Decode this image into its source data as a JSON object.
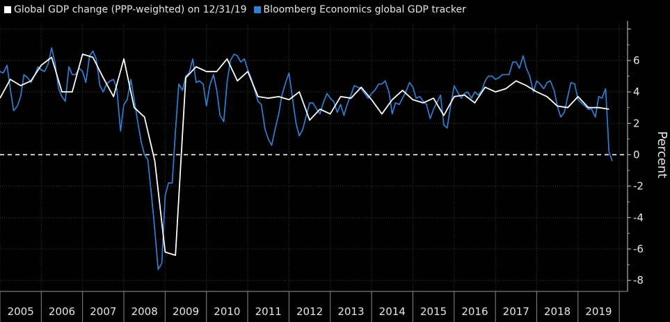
{
  "chart_data": {
    "type": "line",
    "ylabel": "Percent",
    "ylim": [
      -8.7,
      8.3
    ],
    "yticks": [
      8,
      6,
      4,
      2,
      0,
      -2,
      -4,
      -6,
      -8
    ],
    "ytick_labels": [
      "",
      "6",
      "4",
      "2",
      "0",
      "-2",
      "-4",
      "-6",
      "-8"
    ],
    "xlim": [
      2005.0,
      2020.2
    ],
    "year_labels": [
      "2005",
      "2006",
      "2007",
      "2008",
      "2009",
      "2010",
      "2011",
      "2012",
      "2013",
      "2014",
      "2015",
      "2016",
      "2017",
      "2018",
      "2019"
    ],
    "zero_line": "dashed",
    "legend_position": "top-left",
    "series": [
      {
        "name": "Global GDP change (PPP-weighted) on 12/31/19",
        "color": "#ffffff",
        "points": [
          [
            2005.0,
            3.6
          ],
          [
            2005.25,
            4.8
          ],
          [
            2005.5,
            4.4
          ],
          [
            2005.75,
            4.7
          ],
          [
            2006.0,
            5.7
          ],
          [
            2006.25,
            6.2
          ],
          [
            2006.5,
            4.0
          ],
          [
            2006.75,
            4.0
          ],
          [
            2007.0,
            6.4
          ],
          [
            2007.25,
            6.2
          ],
          [
            2007.5,
            4.9
          ],
          [
            2007.75,
            3.7
          ],
          [
            2008.0,
            6.1
          ],
          [
            2008.25,
            3.0
          ],
          [
            2008.5,
            2.4
          ],
          [
            2008.75,
            -0.4
          ],
          [
            2009.0,
            -6.2
          ],
          [
            2009.25,
            -6.4
          ],
          [
            2009.5,
            4.9
          ],
          [
            2009.75,
            5.6
          ],
          [
            2010.0,
            5.3
          ],
          [
            2010.25,
            5.3
          ],
          [
            2010.5,
            6.1
          ],
          [
            2010.75,
            4.7
          ],
          [
            2011.0,
            5.3
          ],
          [
            2011.25,
            3.7
          ],
          [
            2011.5,
            3.6
          ],
          [
            2011.75,
            3.7
          ],
          [
            2012.0,
            3.5
          ],
          [
            2012.25,
            4.0
          ],
          [
            2012.5,
            2.2
          ],
          [
            2012.75,
            2.9
          ],
          [
            2013.0,
            2.6
          ],
          [
            2013.25,
            3.7
          ],
          [
            2013.5,
            3.6
          ],
          [
            2013.75,
            4.3
          ],
          [
            2014.0,
            3.5
          ],
          [
            2014.25,
            2.6
          ],
          [
            2014.5,
            3.5
          ],
          [
            2014.75,
            4.1
          ],
          [
            2015.0,
            3.5
          ],
          [
            2015.25,
            3.3
          ],
          [
            2015.5,
            3.6
          ],
          [
            2015.75,
            2.5
          ],
          [
            2016.0,
            3.7
          ],
          [
            2016.25,
            3.8
          ],
          [
            2016.5,
            3.3
          ],
          [
            2016.75,
            4.3
          ],
          [
            2017.0,
            4.0
          ],
          [
            2017.25,
            4.2
          ],
          [
            2017.5,
            4.7
          ],
          [
            2017.75,
            4.4
          ],
          [
            2018.0,
            4.0
          ],
          [
            2018.25,
            3.7
          ],
          [
            2018.5,
            3.1
          ],
          [
            2018.75,
            3.0
          ],
          [
            2019.0,
            3.7
          ],
          [
            2019.25,
            3.0
          ],
          [
            2019.5,
            3.0
          ],
          [
            2019.75,
            2.9
          ]
        ]
      },
      {
        "name": "Bloomberg Economics global GDP tracker",
        "color": "#2f7fd6",
        "points": [
          [
            2005.0,
            5.3
          ],
          [
            2005.08,
            5.2
          ],
          [
            2005.17,
            5.7
          ],
          [
            2005.25,
            4.2
          ],
          [
            2005.33,
            2.8
          ],
          [
            2005.42,
            3.1
          ],
          [
            2005.5,
            3.7
          ],
          [
            2005.58,
            5.1
          ],
          [
            2005.67,
            4.9
          ],
          [
            2005.75,
            4.6
          ],
          [
            2005.83,
            5.0
          ],
          [
            2005.92,
            5.6
          ],
          [
            2006.0,
            5.4
          ],
          [
            2006.08,
            5.3
          ],
          [
            2006.17,
            5.8
          ],
          [
            2006.25,
            6.8
          ],
          [
            2006.33,
            5.9
          ],
          [
            2006.42,
            4.2
          ],
          [
            2006.5,
            3.7
          ],
          [
            2006.58,
            3.4
          ],
          [
            2006.67,
            5.6
          ],
          [
            2006.75,
            5.1
          ],
          [
            2006.83,
            5.1
          ],
          [
            2006.92,
            5.5
          ],
          [
            2007.0,
            5.3
          ],
          [
            2007.08,
            4.6
          ],
          [
            2007.17,
            6.3
          ],
          [
            2007.25,
            6.6
          ],
          [
            2007.33,
            6.1
          ],
          [
            2007.42,
            4.4
          ],
          [
            2007.5,
            4.0
          ],
          [
            2007.58,
            4.5
          ],
          [
            2007.67,
            4.7
          ],
          [
            2007.75,
            4.8
          ],
          [
            2007.83,
            4.2
          ],
          [
            2007.92,
            1.5
          ],
          [
            2008.0,
            3.2
          ],
          [
            2008.08,
            3.5
          ],
          [
            2008.17,
            4.8
          ],
          [
            2008.25,
            3.5
          ],
          [
            2008.33,
            2.2
          ],
          [
            2008.42,
            0.8
          ],
          [
            2008.5,
            0.0
          ],
          [
            2008.58,
            -0.3
          ],
          [
            2008.67,
            -2.6
          ],
          [
            2008.75,
            -4.8
          ],
          [
            2008.83,
            -7.3
          ],
          [
            2008.92,
            -6.9
          ],
          [
            2009.0,
            -2.6
          ],
          [
            2009.08,
            -1.8
          ],
          [
            2009.17,
            -1.8
          ],
          [
            2009.25,
            1.5
          ],
          [
            2009.33,
            4.5
          ],
          [
            2009.42,
            4.1
          ],
          [
            2009.5,
            5.0
          ],
          [
            2009.58,
            5.2
          ],
          [
            2009.67,
            6.1
          ],
          [
            2009.75,
            4.6
          ],
          [
            2009.83,
            4.7
          ],
          [
            2009.92,
            4.5
          ],
          [
            2010.0,
            3.1
          ],
          [
            2010.08,
            4.4
          ],
          [
            2010.17,
            5.1
          ],
          [
            2010.25,
            4.1
          ],
          [
            2010.33,
            2.5
          ],
          [
            2010.42,
            2.1
          ],
          [
            2010.5,
            4.6
          ],
          [
            2010.58,
            6.0
          ],
          [
            2010.67,
            6.4
          ],
          [
            2010.75,
            6.3
          ],
          [
            2010.83,
            5.9
          ],
          [
            2010.92,
            6.1
          ],
          [
            2011.0,
            5.4
          ],
          [
            2011.08,
            4.9
          ],
          [
            2011.17,
            4.1
          ],
          [
            2011.25,
            3.4
          ],
          [
            2011.33,
            3.2
          ],
          [
            2011.42,
            1.6
          ],
          [
            2011.5,
            1.0
          ],
          [
            2011.58,
            0.6
          ],
          [
            2011.67,
            1.7
          ],
          [
            2011.75,
            2.6
          ],
          [
            2011.83,
            3.8
          ],
          [
            2011.92,
            4.6
          ],
          [
            2012.0,
            5.2
          ],
          [
            2012.08,
            3.7
          ],
          [
            2012.17,
            2.0
          ],
          [
            2012.25,
            1.2
          ],
          [
            2012.33,
            1.6
          ],
          [
            2012.42,
            2.5
          ],
          [
            2012.5,
            3.3
          ],
          [
            2012.58,
            3.3
          ],
          [
            2012.67,
            2.9
          ],
          [
            2012.75,
            2.6
          ],
          [
            2012.83,
            3.3
          ],
          [
            2012.92,
            3.9
          ],
          [
            2013.0,
            3.6
          ],
          [
            2013.08,
            3.4
          ],
          [
            2013.17,
            2.7
          ],
          [
            2013.25,
            3.2
          ],
          [
            2013.33,
            2.5
          ],
          [
            2013.42,
            3.3
          ],
          [
            2013.5,
            3.8
          ],
          [
            2013.58,
            4.4
          ],
          [
            2013.67,
            4.3
          ],
          [
            2013.75,
            4.2
          ],
          [
            2013.83,
            3.9
          ],
          [
            2013.92,
            3.6
          ],
          [
            2014.0,
            3.9
          ],
          [
            2014.08,
            4.1
          ],
          [
            2014.17,
            4.5
          ],
          [
            2014.25,
            4.5
          ],
          [
            2014.33,
            4.7
          ],
          [
            2014.42,
            4.0
          ],
          [
            2014.5,
            2.6
          ],
          [
            2014.58,
            3.3
          ],
          [
            2014.67,
            3.2
          ],
          [
            2014.75,
            3.6
          ],
          [
            2014.83,
            4.0
          ],
          [
            2014.92,
            4.6
          ],
          [
            2015.0,
            4.3
          ],
          [
            2015.08,
            3.6
          ],
          [
            2015.17,
            3.7
          ],
          [
            2015.25,
            3.4
          ],
          [
            2015.33,
            3.2
          ],
          [
            2015.42,
            2.3
          ],
          [
            2015.5,
            2.9
          ],
          [
            2015.58,
            3.3
          ],
          [
            2015.67,
            3.8
          ],
          [
            2015.75,
            1.9
          ],
          [
            2015.83,
            1.7
          ],
          [
            2015.92,
            3.2
          ],
          [
            2016.0,
            4.4
          ],
          [
            2016.08,
            4.0
          ],
          [
            2016.17,
            3.6
          ],
          [
            2016.25,
            3.9
          ],
          [
            2016.33,
            4.0
          ],
          [
            2016.42,
            3.6
          ],
          [
            2016.5,
            4.0
          ],
          [
            2016.58,
            3.8
          ],
          [
            2016.67,
            4.1
          ],
          [
            2016.75,
            4.7
          ],
          [
            2016.83,
            5.0
          ],
          [
            2016.92,
            5.0
          ],
          [
            2017.0,
            4.8
          ],
          [
            2017.08,
            4.9
          ],
          [
            2017.17,
            5.1
          ],
          [
            2017.25,
            5.1
          ],
          [
            2017.33,
            5.1
          ],
          [
            2017.42,
            5.9
          ],
          [
            2017.5,
            5.9
          ],
          [
            2017.58,
            5.5
          ],
          [
            2017.67,
            6.3
          ],
          [
            2017.75,
            5.5
          ],
          [
            2017.83,
            5.0
          ],
          [
            2017.92,
            4.0
          ],
          [
            2018.0,
            4.7
          ],
          [
            2018.08,
            4.5
          ],
          [
            2018.17,
            4.2
          ],
          [
            2018.25,
            4.6
          ],
          [
            2018.33,
            4.7
          ],
          [
            2018.42,
            4.1
          ],
          [
            2018.5,
            3.1
          ],
          [
            2018.58,
            2.4
          ],
          [
            2018.67,
            2.7
          ],
          [
            2018.75,
            3.7
          ],
          [
            2018.83,
            4.6
          ],
          [
            2018.92,
            4.5
          ],
          [
            2019.0,
            3.5
          ],
          [
            2019.08,
            3.3
          ],
          [
            2019.17,
            3.1
          ],
          [
            2019.25,
            2.9
          ],
          [
            2019.33,
            2.9
          ],
          [
            2019.42,
            2.4
          ],
          [
            2019.5,
            3.7
          ],
          [
            2019.58,
            3.6
          ],
          [
            2019.67,
            4.2
          ],
          [
            2019.75,
            0.2
          ],
          [
            2019.83,
            -0.4
          ]
        ]
      }
    ]
  }
}
